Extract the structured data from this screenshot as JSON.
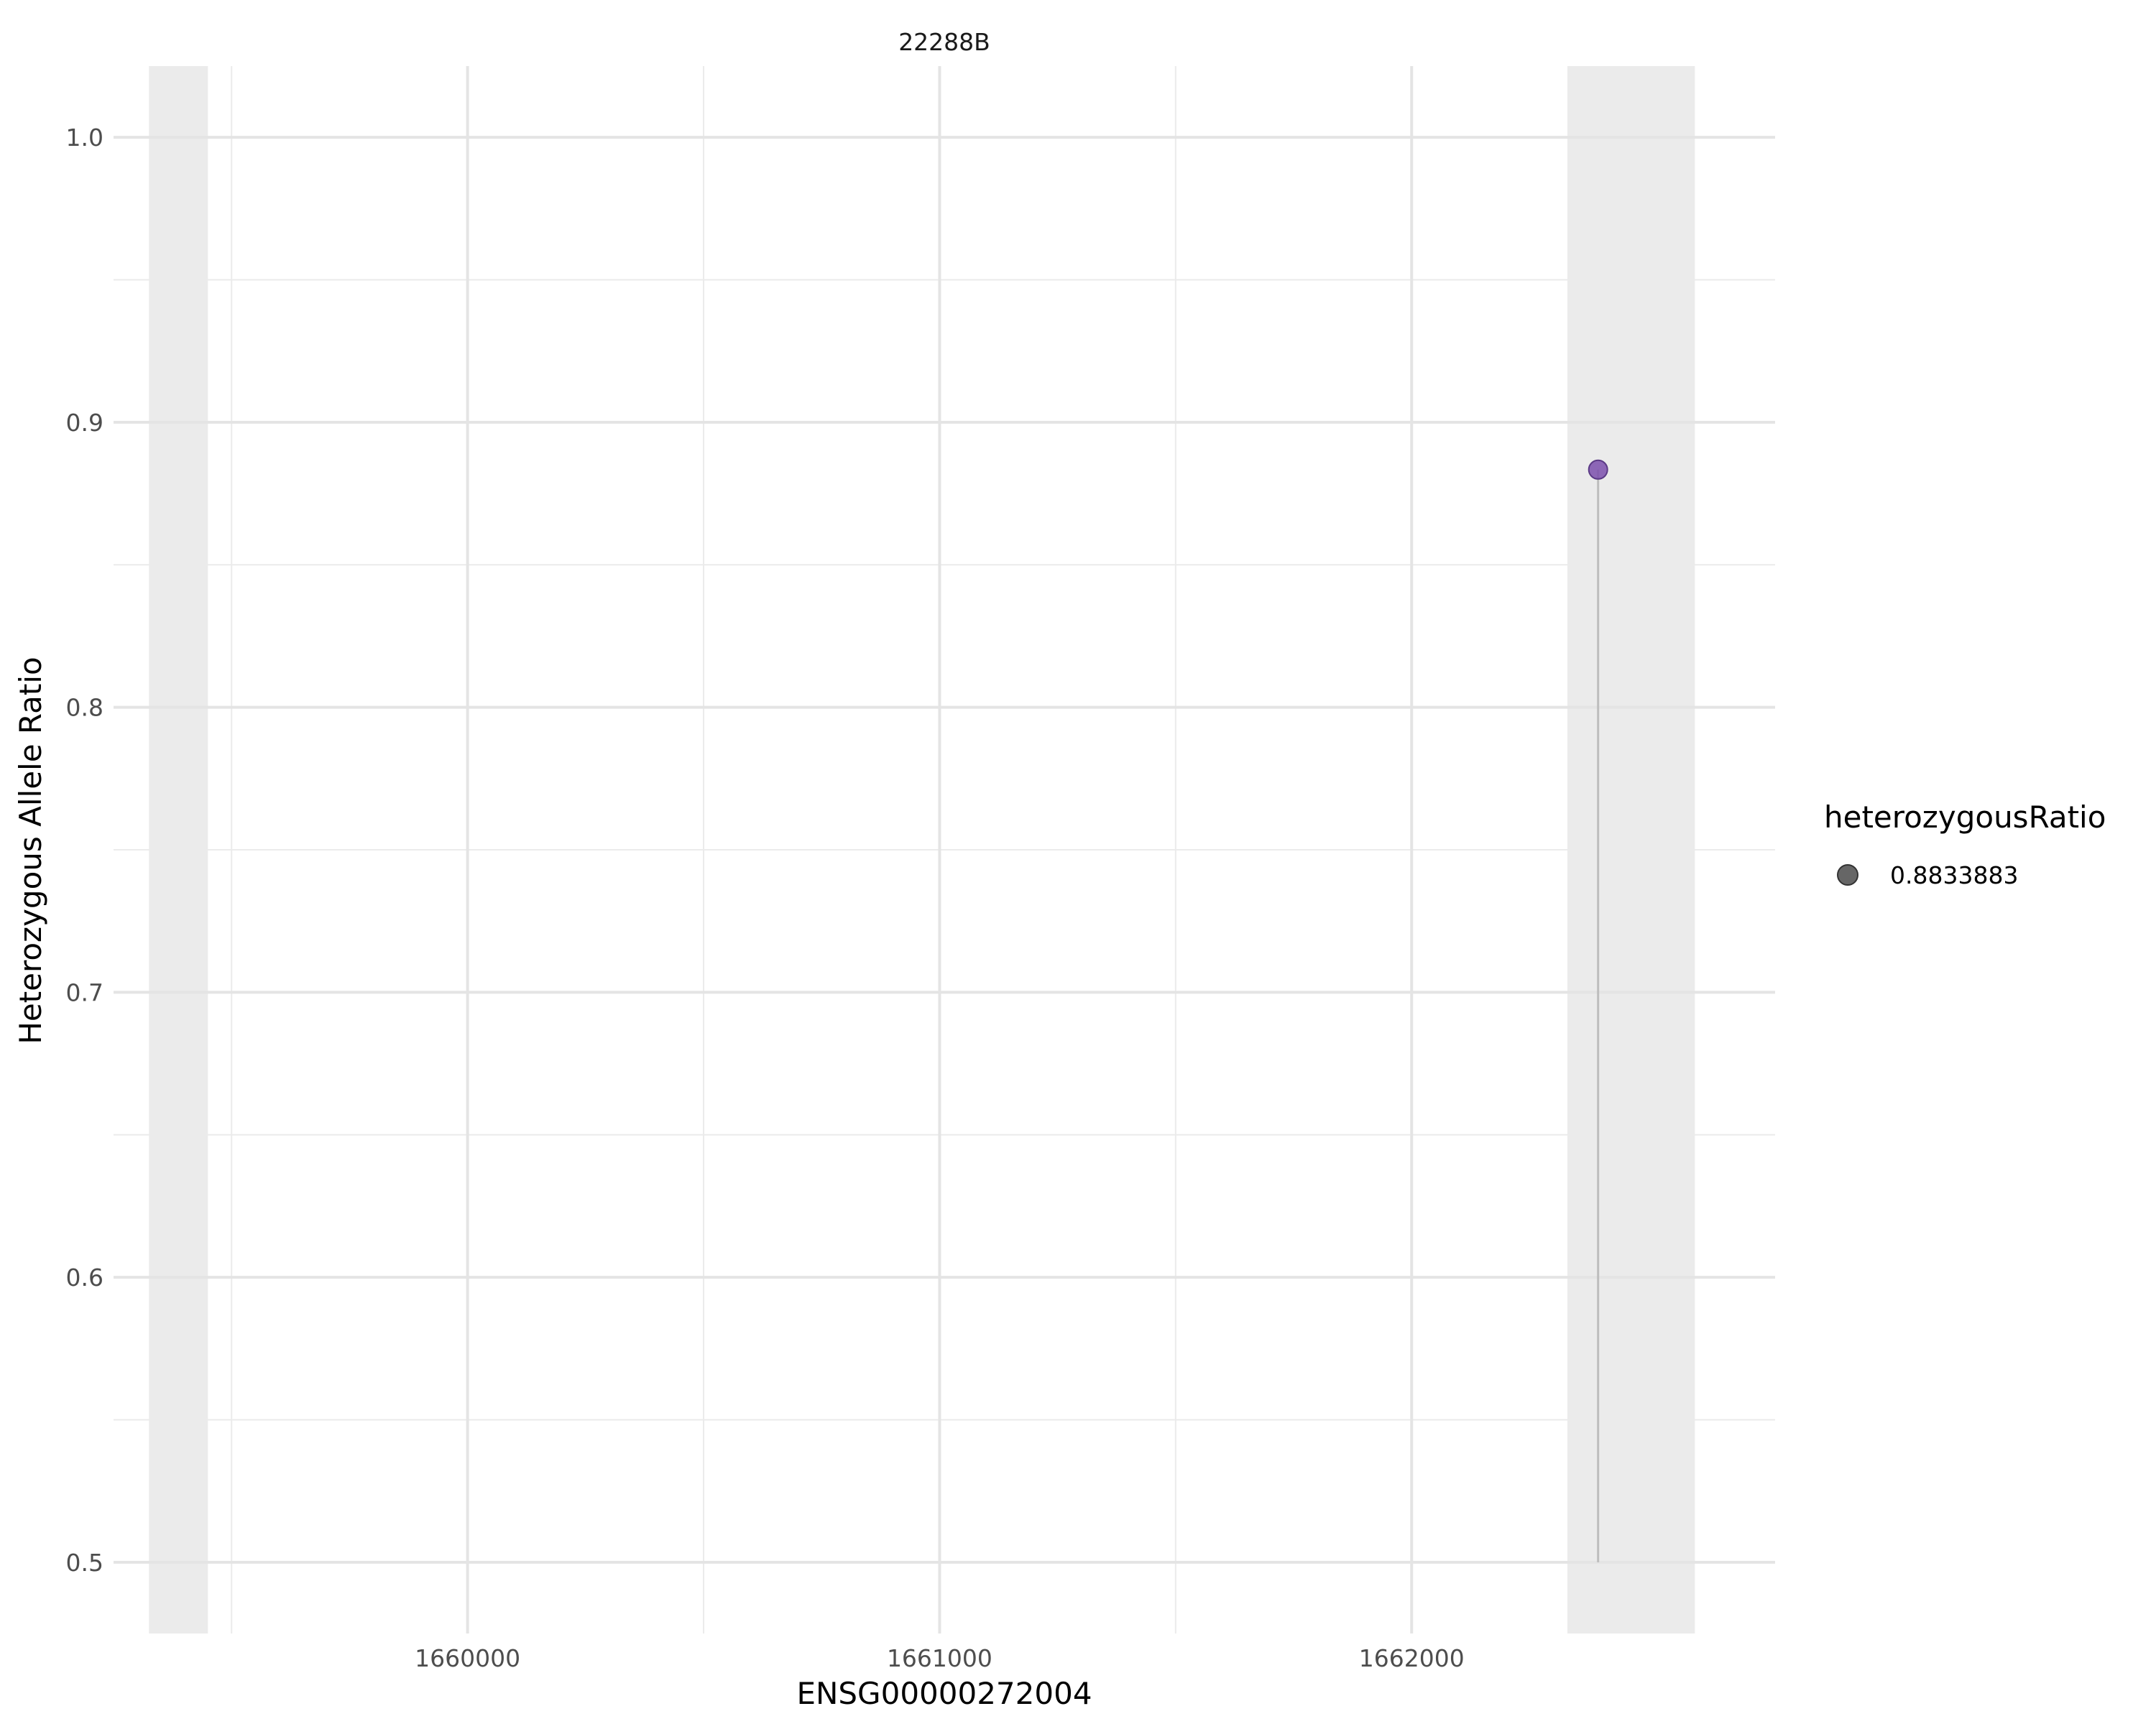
{
  "chart_data": {
    "type": "scatter",
    "title": "22288B",
    "xlabel": "ENSG00000272004",
    "ylabel": "Heterozygous Allele Ratio",
    "xlim": [
      1659250,
      1662770
    ],
    "ylim": [
      0.475,
      1.025
    ],
    "x_ticks": [
      1660000,
      1661000,
      1662000
    ],
    "x_tick_labels": [
      "1660000",
      "1661000",
      "1662000"
    ],
    "x_minor_ticks": [
      1659500,
      1660500,
      1661500,
      1662500
    ],
    "y_ticks": [
      0.5,
      0.6,
      0.7,
      0.8,
      0.9,
      1.0
    ],
    "y_tick_labels": [
      "0.5",
      "0.6",
      "0.7",
      "0.8",
      "0.9",
      "1.0"
    ],
    "y_minor_ticks": [
      0.55,
      0.65,
      0.75,
      0.85,
      0.95
    ],
    "shaded_regions": [
      {
        "x_start": 1659325,
        "x_end": 1659450
      },
      {
        "x_start": 1662330,
        "x_end": 1662600
      }
    ],
    "points": [
      {
        "x": 1662395,
        "y": 0.8833883,
        "stem_base": 0.5
      }
    ],
    "point_color": "#7b4fad",
    "legend": {
      "title": "heterozygousRatio",
      "position": "right",
      "entries": [
        {
          "label": "0.8833883",
          "color": "#666666"
        }
      ]
    }
  }
}
